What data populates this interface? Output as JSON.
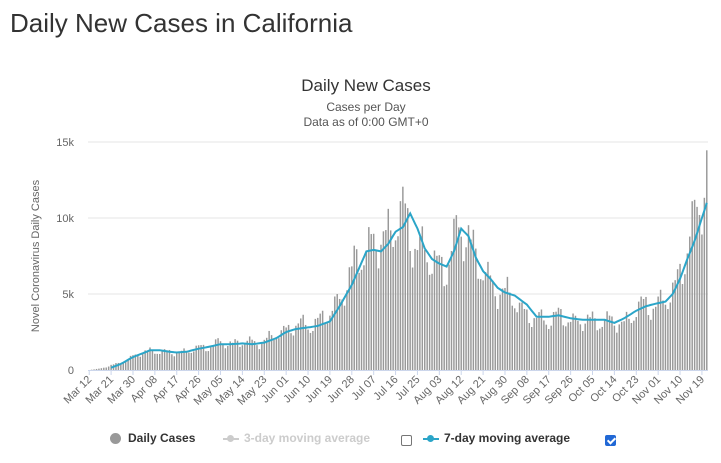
{
  "page": {
    "title": "Daily New Cases in California"
  },
  "chart_data": {
    "type": "bar",
    "title": "Daily New Cases",
    "subtitle": "Cases per Day",
    "subtitle2": "Data as of 0:00 GMT+0",
    "ylabel": "Novel Coronavirus Daily Cases",
    "xlabel": "",
    "ylim": [
      0,
      15000
    ],
    "yticks": [
      0,
      5000,
      10000,
      15000
    ],
    "ytick_labels": [
      "0",
      "5k",
      "10k",
      "15k"
    ],
    "grid": true,
    "legend_position": "bottom",
    "start_date": "Mar 12",
    "x_labels": [
      "Mar 12",
      "Mar 21",
      "Mar 30",
      "Apr 08",
      "Apr 17",
      "Apr 26",
      "May 05",
      "May 14",
      "May 23",
      "Jun 01",
      "Jun 10",
      "Jun 19",
      "Jun 28",
      "Jul 07",
      "Jul 16",
      "Jul 25",
      "Aug 03",
      "Aug 12",
      "Aug 21",
      "Aug 30",
      "Sep 08",
      "Sep 17",
      "Sep 26",
      "Oct 05",
      "Oct 14",
      "Oct 23",
      "Nov 01",
      "Nov 10",
      "Nov 19"
    ],
    "daily_key_points": [
      [
        "Mar 12",
        0
      ],
      [
        "Mar 16",
        80
      ],
      [
        "Mar 21",
        300
      ],
      [
        "Mar 25",
        450
      ],
      [
        "Mar 30",
        900
      ],
      [
        "Apr 03",
        1150
      ],
      [
        "Apr 08",
        1300
      ],
      [
        "Apr 12",
        1150
      ],
      [
        "Apr 17",
        1150
      ],
      [
        "Apr 22",
        1250
      ],
      [
        "Apr 26",
        1450
      ],
      [
        "May 01",
        1600
      ],
      [
        "May 05",
        1800
      ],
      [
        "May 09",
        1750
      ],
      [
        "May 14",
        1850
      ],
      [
        "May 18",
        1800
      ],
      [
        "May 23",
        1900
      ],
      [
        "May 28",
        2300
      ],
      [
        "Jun 01",
        2700
      ],
      [
        "Jun 05",
        2900
      ],
      [
        "Jun 10",
        3000
      ],
      [
        "Jun 14",
        3150
      ],
      [
        "Jun 19",
        3700
      ],
      [
        "Jun 23",
        4800
      ],
      [
        "Jun 28",
        6200
      ],
      [
        "Jul 01",
        7800
      ],
      [
        "Jul 04",
        8000
      ],
      [
        "Jul 07",
        8200
      ],
      [
        "Jul 10",
        8400
      ],
      [
        "Jul 13",
        9000
      ],
      [
        "Jul 16",
        10000
      ],
      [
        "Jul 19",
        10100
      ],
      [
        "Jul 22",
        9000
      ],
      [
        "Jul 25",
        8200
      ],
      [
        "Jul 28",
        7800
      ],
      [
        "Jul 31",
        7000
      ],
      [
        "Aug 03",
        6900
      ],
      [
        "Aug 06",
        6900
      ],
      [
        "Aug 09",
        8200
      ],
      [
        "Aug 12",
        9300
      ],
      [
        "Aug 15",
        9000
      ],
      [
        "Aug 18",
        7400
      ],
      [
        "Aug 21",
        6300
      ],
      [
        "Aug 24",
        5800
      ],
      [
        "Aug 27",
        5400
      ],
      [
        "Aug 30",
        4900
      ],
      [
        "Sep 03",
        4700
      ],
      [
        "Sep 08",
        3600
      ],
      [
        "Sep 12",
        3300
      ],
      [
        "Sep 17",
        3400
      ],
      [
        "Sep 21",
        3500
      ],
      [
        "Sep 26",
        3300
      ],
      [
        "Oct 01",
        3200
      ],
      [
        "Oct 05",
        3200
      ],
      [
        "Oct 10",
        3300
      ],
      [
        "Oct 14",
        3100
      ],
      [
        "Oct 18",
        3100
      ],
      [
        "Oct 23",
        3900
      ],
      [
        "Oct 27",
        4300
      ],
      [
        "Nov 01",
        4300
      ],
      [
        "Nov 04",
        4500
      ],
      [
        "Nov 07",
        5200
      ],
      [
        "Nov 10",
        6500
      ],
      [
        "Nov 13",
        8000
      ],
      [
        "Nov 16",
        9600
      ],
      [
        "Nov 19",
        11800
      ],
      [
        "Nov 21",
        13700
      ]
    ],
    "avg7_key_points": [
      [
        "Mar 21",
        150
      ],
      [
        "Mar 25",
        400
      ],
      [
        "Mar 30",
        850
      ],
      [
        "Apr 03",
        1100
      ],
      [
        "Apr 06",
        1300
      ],
      [
        "Apr 10",
        1300
      ],
      [
        "Apr 14",
        1200
      ],
      [
        "Apr 17",
        1150
      ],
      [
        "Apr 21",
        1200
      ],
      [
        "Apr 26",
        1400
      ],
      [
        "May 01",
        1550
      ],
      [
        "May 05",
        1700
      ],
      [
        "May 09",
        1700
      ],
      [
        "May 14",
        1750
      ],
      [
        "May 18",
        1700
      ],
      [
        "May 23",
        1800
      ],
      [
        "May 28",
        2100
      ],
      [
        "Jun 01",
        2500
      ],
      [
        "Jun 05",
        2700
      ],
      [
        "Jun 10",
        2800
      ],
      [
        "Jun 14",
        2900
      ],
      [
        "Jun 19",
        3200
      ],
      [
        "Jun 23",
        4200
      ],
      [
        "Jun 28",
        5600
      ],
      [
        "Jul 01",
        6700
      ],
      [
        "Jul 04",
        7800
      ],
      [
        "Jul 07",
        7900
      ],
      [
        "Jul 10",
        7800
      ],
      [
        "Jul 13",
        8300
      ],
      [
        "Jul 16",
        9100
      ],
      [
        "Jul 19",
        9400
      ],
      [
        "Jul 22",
        10300
      ],
      [
        "Jul 25",
        9300
      ],
      [
        "Jul 28",
        8000
      ],
      [
        "Jul 31",
        7300
      ],
      [
        "Aug 03",
        7000
      ],
      [
        "Aug 06",
        6800
      ],
      [
        "Aug 09",
        7800
      ],
      [
        "Aug 12",
        9300
      ],
      [
        "Aug 15",
        8800
      ],
      [
        "Aug 18",
        7400
      ],
      [
        "Aug 21",
        6500
      ],
      [
        "Aug 24",
        6000
      ],
      [
        "Aug 27",
        5400
      ],
      [
        "Aug 30",
        5100
      ],
      [
        "Sep 03",
        4900
      ],
      [
        "Sep 08",
        4300
      ],
      [
        "Sep 12",
        3500
      ],
      [
        "Sep 17",
        3500
      ],
      [
        "Sep 21",
        3600
      ],
      [
        "Sep 26",
        3400
      ],
      [
        "Oct 01",
        3300
      ],
      [
        "Oct 05",
        3300
      ],
      [
        "Oct 10",
        3300
      ],
      [
        "Oct 14",
        3100
      ],
      [
        "Oct 18",
        3400
      ],
      [
        "Oct 23",
        3900
      ],
      [
        "Oct 27",
        4200
      ],
      [
        "Nov 01",
        4400
      ],
      [
        "Nov 04",
        4500
      ],
      [
        "Nov 07",
        5000
      ],
      [
        "Nov 10",
        6000
      ],
      [
        "Nov 13",
        7300
      ],
      [
        "Nov 16",
        8500
      ],
      [
        "Nov 19",
        10000
      ],
      [
        "Nov 21",
        11000
      ]
    ],
    "series": [
      {
        "name": "Daily Cases",
        "color": "#999999",
        "visible": true
      },
      {
        "name": "3-day moving average",
        "color": "#cccccc",
        "visible": false
      },
      {
        "name": "7-day moving average",
        "color": "#2ba5c8",
        "visible": true
      }
    ]
  },
  "legend": {
    "daily_cases_label": "Daily Cases",
    "avg3_label": "3-day moving average",
    "avg3_checked": false,
    "avg7_label": "7-day moving average",
    "avg7_checked": true
  },
  "icons": {
    "daily_marker": "filled-circle",
    "avg_marker": "line-with-dot",
    "checkbox_empty": "checkbox-unchecked",
    "checkbox_checked": "checkbox-checked"
  }
}
